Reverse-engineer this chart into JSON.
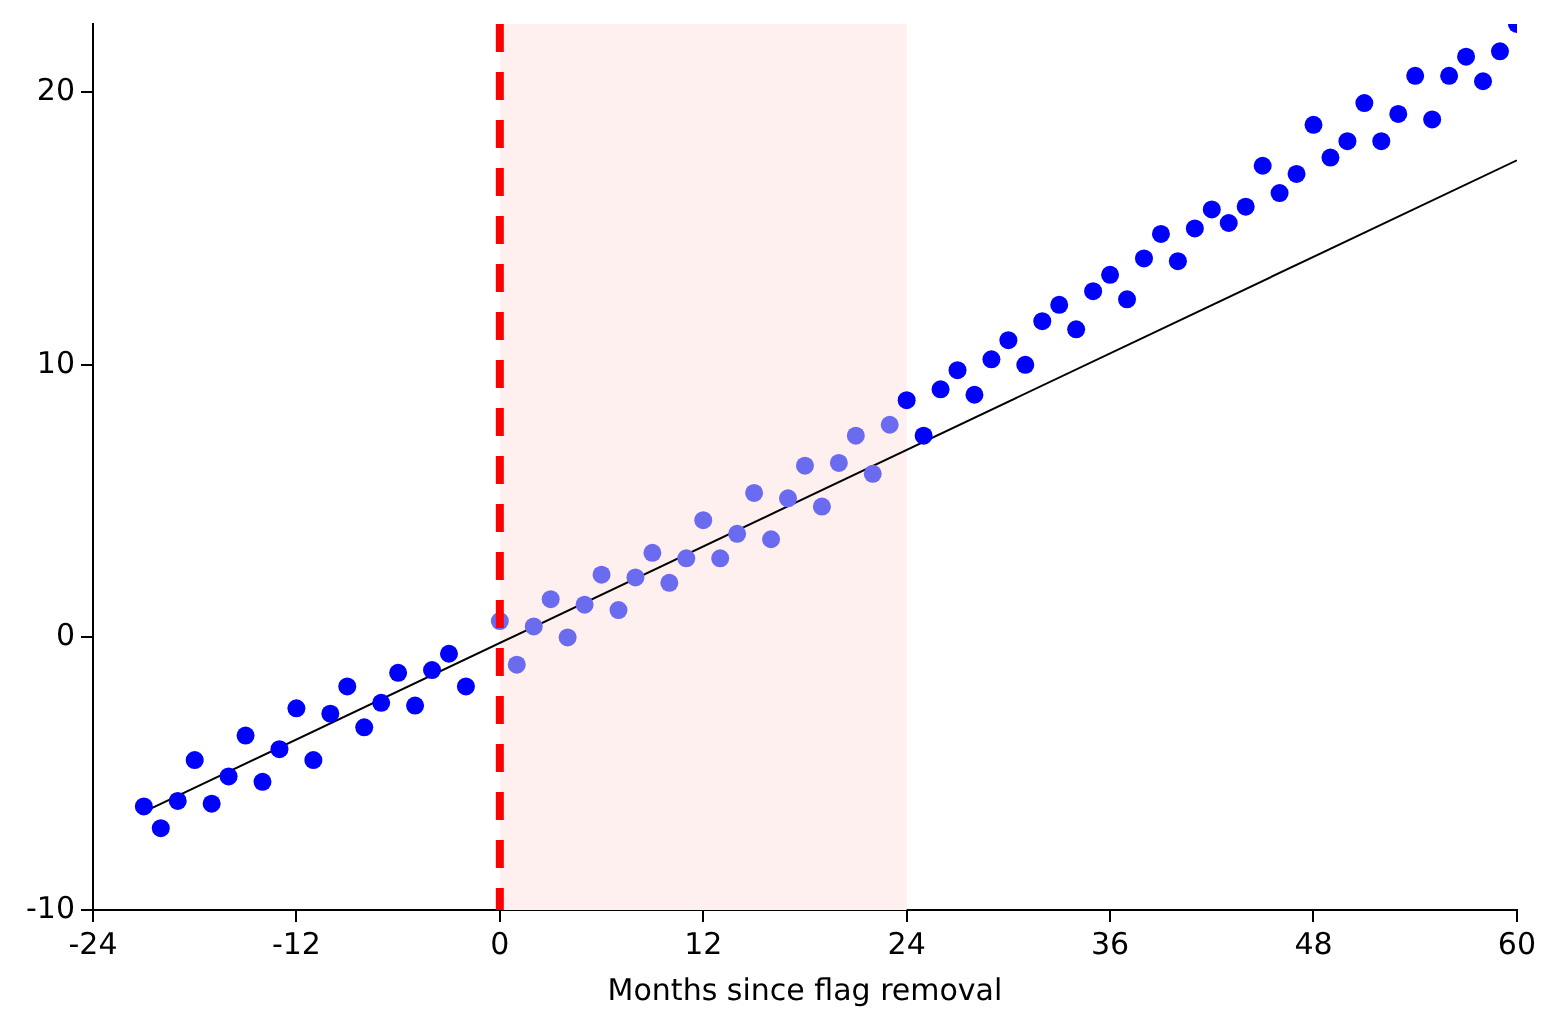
{
  "chart_data": {
    "type": "scatter",
    "xlabel": "Months since flag removal",
    "xlim": [
      -24,
      60
    ],
    "xticks": [
      -24,
      -12,
      0,
      12,
      24,
      36,
      48,
      60
    ],
    "ylim": [
      -10,
      22.5
    ],
    "yticks": [
      -10,
      0,
      10,
      20
    ],
    "grid": false,
    "legend": false,
    "marker": "circle",
    "series": [
      {
        "color": "#0000ff",
        "x": [
          -21,
          -20,
          -19,
          -18,
          -17,
          -16,
          -15,
          -14,
          -13,
          -12,
          -11,
          -10,
          -9,
          -8,
          -7,
          -6,
          -5,
          -4,
          -3,
          -2
        ],
        "values": [
          -6.2,
          -7.0,
          -6.0,
          -4.5,
          -6.1,
          -5.1,
          -3.6,
          -5.3,
          -4.1,
          -2.6,
          -4.5,
          -2.8,
          -1.8,
          -3.3,
          -2.4,
          -1.3,
          -2.5,
          -1.2,
          -0.6,
          -1.8
        ]
      },
      {
        "color": "#6b6bf0",
        "x": [
          0,
          1,
          2,
          3,
          4,
          5,
          6,
          7,
          8,
          9,
          10,
          11,
          12,
          13,
          14,
          15,
          16,
          17,
          18,
          19,
          20,
          21,
          22,
          23
        ],
        "values": [
          0.6,
          -1.0,
          0.4,
          1.4,
          0.0,
          1.2,
          2.3,
          1.0,
          2.2,
          3.1,
          2.0,
          2.9,
          4.3,
          2.9,
          3.8,
          5.3,
          3.6,
          5.1,
          6.3,
          4.8,
          6.4,
          7.4,
          6.0,
          7.8
        ]
      },
      {
        "color": "#0000ff",
        "x": [
          24,
          25,
          26,
          27,
          28,
          29,
          30,
          31,
          32,
          33,
          34,
          35,
          36,
          37,
          38,
          39,
          40,
          41,
          42,
          43,
          44,
          45,
          46,
          47,
          48,
          49,
          50,
          51,
          52,
          53,
          54,
          55,
          56,
          57,
          58,
          59,
          60
        ],
        "values": [
          8.7,
          7.4,
          9.1,
          9.8,
          8.9,
          10.2,
          10.9,
          10.0,
          11.6,
          12.2,
          11.3,
          12.7,
          13.3,
          12.4,
          13.9,
          14.8,
          13.8,
          15.0,
          15.7,
          15.2,
          15.8,
          17.3,
          16.3,
          17.0,
          18.8,
          17.6,
          18.2,
          19.6,
          18.2,
          19.2,
          20.6,
          19.0,
          20.6,
          21.3,
          20.4,
          21.5,
          22.5
        ]
      },
      {
        "type": "line",
        "color": "#000000",
        "x": [
          -21,
          60
        ],
        "values": [
          -6.4,
          17.5
        ],
        "marker": "none"
      }
    ],
    "ref_lines": [
      {
        "axis": "x",
        "value": 0,
        "color": "#ff0000",
        "line_style": "dashed"
      }
    ],
    "bands": [
      {
        "axis": "x",
        "from": 0,
        "to": 24,
        "color": "#fff0f0"
      }
    ]
  }
}
